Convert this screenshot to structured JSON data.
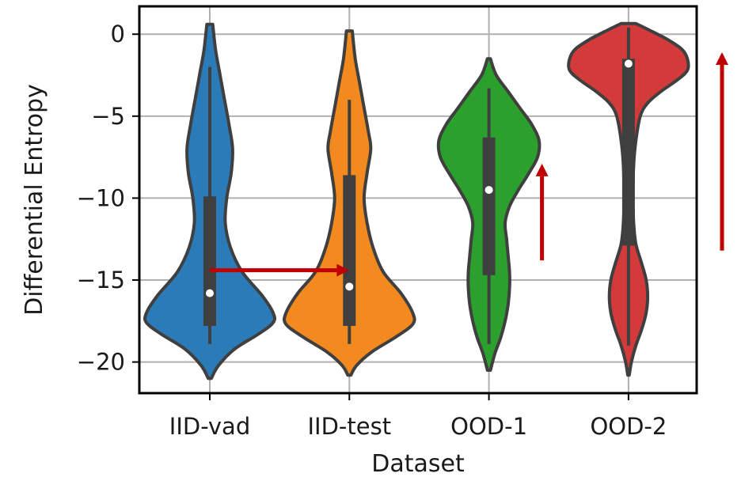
{
  "chart_data": {
    "type": "violin",
    "xlabel": "Dataset",
    "ylabel": "Differential Entropy",
    "ylim": [
      -21.9,
      1.7
    ],
    "yticks": [
      0,
      -5,
      -10,
      -15,
      -20
    ],
    "ytick_labels": [
      "0",
      "−5",
      "−10",
      "−15",
      "−20"
    ],
    "grid": true,
    "categories": [
      "IID-vad",
      "IID-test",
      "OOD-1",
      "OOD-2"
    ],
    "colors": [
      "#2b7bb9",
      "#f28a20",
      "#2ca02c",
      "#d33b3b"
    ],
    "arrow_color": "#c00000",
    "series": [
      {
        "category": "IID-vad",
        "median": -15.8,
        "q1": -17.8,
        "q3": -9.9,
        "whisker_low": -18.9,
        "whisker_high": -2.0,
        "density": [
          [
            0.6,
            0.02
          ],
          [
            -1.0,
            0.04
          ],
          [
            -2.5,
            0.07
          ],
          [
            -4.0,
            0.1
          ],
          [
            -5.5,
            0.13
          ],
          [
            -7.0,
            0.155
          ],
          [
            -8.5,
            0.145
          ],
          [
            -10.0,
            0.115
          ],
          [
            -11.5,
            0.105
          ],
          [
            -13.0,
            0.14
          ],
          [
            -14.5,
            0.22
          ],
          [
            -16.0,
            0.36
          ],
          [
            -17.0,
            0.43
          ],
          [
            -17.6,
            0.43
          ],
          [
            -18.3,
            0.33
          ],
          [
            -19.2,
            0.17
          ],
          [
            -20.2,
            0.06
          ],
          [
            -21.0,
            0.01
          ]
        ]
      },
      {
        "category": "IID-test",
        "median": -15.4,
        "q1": -17.8,
        "q3": -8.6,
        "whisker_low": -18.9,
        "whisker_high": -4.0,
        "density": [
          [
            0.2,
            0.02
          ],
          [
            -1.5,
            0.04
          ],
          [
            -3.0,
            0.07
          ],
          [
            -4.5,
            0.1
          ],
          [
            -6.0,
            0.13
          ],
          [
            -7.0,
            0.145
          ],
          [
            -8.5,
            0.12
          ],
          [
            -10.0,
            0.1
          ],
          [
            -11.5,
            0.12
          ],
          [
            -13.0,
            0.16
          ],
          [
            -14.5,
            0.23
          ],
          [
            -15.8,
            0.35
          ],
          [
            -17.0,
            0.43
          ],
          [
            -17.7,
            0.43
          ],
          [
            -18.5,
            0.31
          ],
          [
            -19.4,
            0.15
          ],
          [
            -20.2,
            0.05
          ],
          [
            -20.8,
            0.01
          ]
        ]
      },
      {
        "category": "OOD-1",
        "median": -9.5,
        "q1": -14.7,
        "q3": -6.3,
        "whisker_low": -18.9,
        "whisker_high": -3.3,
        "density": [
          [
            -1.5,
            0.01
          ],
          [
            -2.5,
            0.05
          ],
          [
            -3.5,
            0.13
          ],
          [
            -4.5,
            0.21
          ],
          [
            -5.5,
            0.29
          ],
          [
            -6.5,
            0.34
          ],
          [
            -7.5,
            0.33
          ],
          [
            -8.5,
            0.27
          ],
          [
            -9.5,
            0.2
          ],
          [
            -10.5,
            0.14
          ],
          [
            -11.5,
            0.11
          ],
          [
            -12.5,
            0.12
          ],
          [
            -13.5,
            0.13
          ],
          [
            -14.5,
            0.14
          ],
          [
            -15.5,
            0.14
          ],
          [
            -16.5,
            0.13
          ],
          [
            -17.5,
            0.11
          ],
          [
            -18.5,
            0.08
          ],
          [
            -19.5,
            0.04
          ],
          [
            -20.5,
            0.01
          ]
        ]
      },
      {
        "category": "OOD-2",
        "median": -1.8,
        "q1": -12.9,
        "q3": -1.5,
        "whisker_low": -19.0,
        "whisker_high": 0.4,
        "density": [
          [
            0.65,
            0.05
          ],
          [
            0.3,
            0.13
          ],
          [
            -0.3,
            0.26
          ],
          [
            -0.9,
            0.36
          ],
          [
            -1.5,
            0.4
          ],
          [
            -2.2,
            0.4
          ],
          [
            -2.8,
            0.33
          ],
          [
            -3.5,
            0.22
          ],
          [
            -4.2,
            0.13
          ],
          [
            -5.0,
            0.08
          ],
          [
            -6.5,
            0.05
          ],
          [
            -8.0,
            0.035
          ],
          [
            -10.0,
            0.03
          ],
          [
            -11.5,
            0.035
          ],
          [
            -12.8,
            0.05
          ],
          [
            -14.0,
            0.09
          ],
          [
            -15.0,
            0.12
          ],
          [
            -16.0,
            0.13
          ],
          [
            -17.0,
            0.12
          ],
          [
            -18.0,
            0.09
          ],
          [
            -19.0,
            0.05
          ],
          [
            -20.0,
            0.02
          ],
          [
            -20.8,
            0.005
          ]
        ]
      }
    ],
    "arrows": [
      {
        "from": [
          0,
          -14.4
        ],
        "to": [
          1,
          -14.4
        ]
      },
      {
        "from": [
          2.38,
          -13.8
        ],
        "to": [
          2.38,
          -7.9
        ]
      },
      {
        "from": [
          3.67,
          -13.2
        ],
        "to": [
          3.67,
          -1.1
        ]
      }
    ]
  }
}
